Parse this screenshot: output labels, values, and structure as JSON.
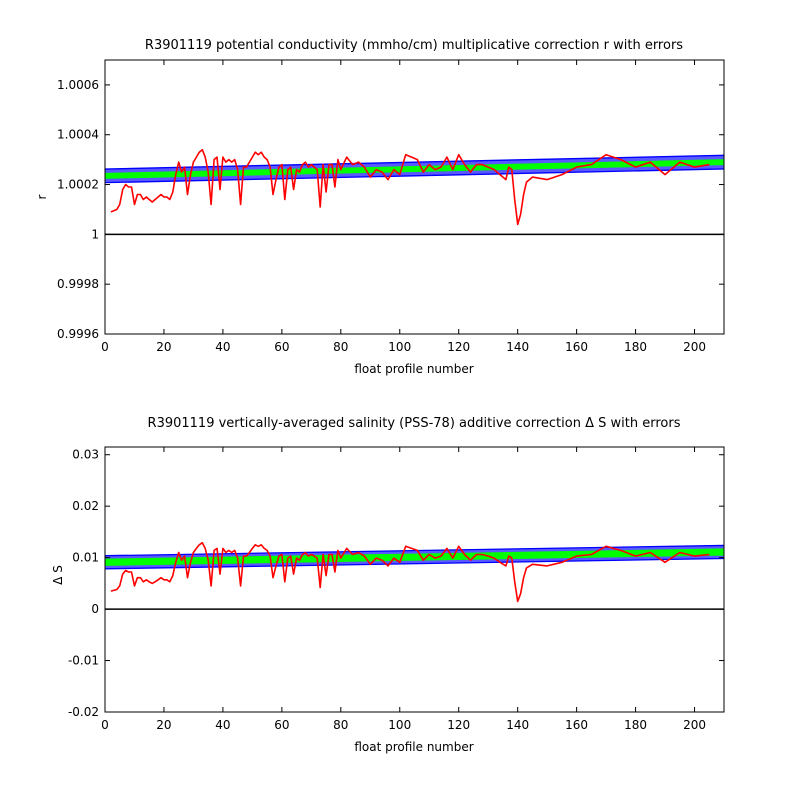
{
  "chart_data": [
    {
      "type": "line",
      "title": "R3901119 potential conductivity (mmho/cm) multiplicative correction r with errors",
      "xlabel": "float profile number",
      "ylabel": "r",
      "xlim": [
        0,
        210
      ],
      "ylim": [
        0.9996,
        1.0007
      ],
      "xticks": [
        0,
        20,
        40,
        60,
        80,
        100,
        120,
        140,
        160,
        180,
        200
      ],
      "yticks": [
        0.9996,
        0.9998,
        1,
        1.0002,
        1.0004,
        1.0006
      ],
      "ytick_labels": [
        "0.9996",
        "0.9998",
        "1",
        "1.0002",
        "1.0004",
        "1.0006"
      ],
      "reference_line": 1,
      "band_center": {
        "x": [
          0,
          210
        ],
        "y": [
          1.000235,
          1.00029
        ]
      },
      "band_green_halfwidth": 1.2e-05,
      "band_blue_halfwidth": 3e-05,
      "series": [
        {
          "color": "#ff0000",
          "x": [
            2,
            4,
            5,
            6,
            7,
            8,
            9,
            10,
            11,
            12,
            13,
            14,
            15,
            16,
            17,
            18,
            19,
            20,
            21,
            22,
            23,
            24,
            25,
            26,
            27,
            28,
            29,
            30,
            31,
            32,
            33,
            34,
            35,
            36,
            37,
            38,
            39,
            40,
            41,
            42,
            43,
            44,
            45,
            46,
            47,
            48,
            49,
            50,
            51,
            52,
            53,
            54,
            55,
            56,
            57,
            58,
            59,
            60,
            61,
            62,
            63,
            64,
            65,
            66,
            67,
            68,
            69,
            70,
            71,
            72,
            73,
            74,
            75,
            76,
            77,
            78,
            79,
            80,
            82,
            84,
            86,
            88,
            90,
            92,
            94,
            96,
            98,
            100,
            102,
            104,
            106,
            108,
            110,
            112,
            114,
            116,
            118,
            120,
            122,
            124,
            126,
            128,
            130,
            132,
            134,
            136,
            137,
            138,
            139,
            140,
            141,
            142,
            143,
            145,
            150,
            155,
            160,
            165,
            170,
            175,
            180,
            185,
            190,
            195,
            200,
            205
          ],
          "y": [
            1.00009,
            1.0001,
            1.00012,
            1.00018,
            1.0002,
            1.00019,
            1.00019,
            1.00012,
            1.00016,
            1.00016,
            1.00014,
            1.00015,
            1.00014,
            1.00013,
            1.00014,
            1.00015,
            1.00016,
            1.00015,
            1.00015,
            1.00014,
            1.00017,
            1.00024,
            1.00029,
            1.00025,
            1.00027,
            1.00016,
            1.00024,
            1.00029,
            1.00031,
            1.00033,
            1.00034,
            1.00031,
            1.00025,
            1.00012,
            1.0003,
            1.00031,
            1.00018,
            1.00031,
            1.00029,
            1.0003,
            1.00029,
            1.0003,
            1.00026,
            1.00012,
            1.00027,
            1.00027,
            1.00029,
            1.00031,
            1.00033,
            1.00032,
            1.00033,
            1.00031,
            1.0003,
            1.00027,
            1.00016,
            1.00022,
            1.00027,
            1.00028,
            1.00014,
            1.00026,
            1.00027,
            1.00018,
            1.00026,
            1.00025,
            1.00028,
            1.00029,
            1.00027,
            1.00028,
            1.00027,
            1.00026,
            1.00011,
            1.00028,
            1.00017,
            1.00028,
            1.00028,
            1.00019,
            1.0003,
            1.00026,
            1.00031,
            1.00028,
            1.00029,
            1.00027,
            1.00023,
            1.00026,
            1.00025,
            1.00022,
            1.00026,
            1.00024,
            1.00032,
            1.00031,
            1.0003,
            1.00025,
            1.00028,
            1.00026,
            1.00027,
            1.00031,
            1.00026,
            1.00032,
            1.00028,
            1.00025,
            1.00028,
            1.00028,
            1.00027,
            1.00026,
            1.00024,
            1.00022,
            1.00027,
            1.00026,
            1.00014,
            1.00004,
            1.00008,
            1.00016,
            1.00021,
            1.00023,
            1.00022,
            1.00024,
            1.00027,
            1.00028,
            1.00032,
            1.0003,
            1.00027,
            1.00029,
            1.00024,
            1.00029,
            1.00027,
            1.00028
          ]
        }
      ]
    },
    {
      "type": "line",
      "title": "R3901119 vertically-averaged salinity (PSS-78) additive correction Δ S with errors",
      "xlabel": "float profile number",
      "ylabel": "Δ S",
      "xlim": [
        0,
        210
      ],
      "ylim": [
        -0.02,
        0.0315
      ],
      "xticks": [
        0,
        20,
        40,
        60,
        80,
        100,
        120,
        140,
        160,
        180,
        200
      ],
      "yticks": [
        -0.02,
        -0.01,
        0,
        0.01,
        0.02,
        0.03
      ],
      "ytick_labels": [
        "-0.02",
        "-0.01",
        "0",
        "0.01",
        "0.02",
        "0.03"
      ],
      "reference_line": 0,
      "band_center": {
        "x": [
          0,
          210
        ],
        "y": [
          0.0091,
          0.0111
        ]
      },
      "band_green_halfwidth": 0.0007,
      "band_blue_halfwidth": 0.0014,
      "series": [
        {
          "color": "#ff0000",
          "x": [
            2,
            4,
            5,
            6,
            7,
            8,
            9,
            10,
            11,
            12,
            13,
            14,
            15,
            16,
            17,
            18,
            19,
            20,
            21,
            22,
            23,
            24,
            25,
            26,
            27,
            28,
            29,
            30,
            31,
            32,
            33,
            34,
            35,
            36,
            37,
            38,
            39,
            40,
            41,
            42,
            43,
            44,
            45,
            46,
            47,
            48,
            49,
            50,
            51,
            52,
            53,
            54,
            55,
            56,
            57,
            58,
            59,
            60,
            61,
            62,
            63,
            64,
            65,
            66,
            67,
            68,
            69,
            70,
            71,
            72,
            73,
            74,
            75,
            76,
            77,
            78,
            79,
            80,
            82,
            84,
            86,
            88,
            90,
            92,
            94,
            96,
            98,
            100,
            102,
            104,
            106,
            108,
            110,
            112,
            114,
            116,
            118,
            120,
            122,
            124,
            126,
            128,
            130,
            132,
            134,
            136,
            137,
            138,
            139,
            140,
            141,
            142,
            143,
            145,
            150,
            155,
            160,
            165,
            170,
            175,
            180,
            185,
            190,
            195,
            200,
            205
          ],
          "y": [
            0.0035,
            0.0038,
            0.0045,
            0.0068,
            0.0075,
            0.0072,
            0.0072,
            0.0045,
            0.0061,
            0.0061,
            0.0053,
            0.0057,
            0.0053,
            0.005,
            0.0053,
            0.0057,
            0.0061,
            0.0057,
            0.0057,
            0.0053,
            0.0065,
            0.0091,
            0.011,
            0.0095,
            0.0103,
            0.0061,
            0.0091,
            0.011,
            0.0118,
            0.0125,
            0.0129,
            0.0118,
            0.0095,
            0.0045,
            0.0114,
            0.0118,
            0.0068,
            0.0118,
            0.011,
            0.0114,
            0.011,
            0.0114,
            0.0099,
            0.0045,
            0.0103,
            0.0103,
            0.011,
            0.0118,
            0.0125,
            0.0122,
            0.0125,
            0.0118,
            0.0114,
            0.0103,
            0.0061,
            0.0084,
            0.0103,
            0.0106,
            0.0053,
            0.0099,
            0.0103,
            0.0068,
            0.0099,
            0.0095,
            0.0106,
            0.011,
            0.0103,
            0.0106,
            0.0103,
            0.0099,
            0.0042,
            0.0106,
            0.0065,
            0.0106,
            0.0106,
            0.0072,
            0.0114,
            0.0099,
            0.0118,
            0.0106,
            0.011,
            0.0103,
            0.0087,
            0.0099,
            0.0095,
            0.0084,
            0.0099,
            0.0091,
            0.0122,
            0.0118,
            0.0114,
            0.0095,
            0.0106,
            0.0099,
            0.0103,
            0.0118,
            0.0099,
            0.0122,
            0.0106,
            0.0095,
            0.0106,
            0.0106,
            0.0103,
            0.0099,
            0.0091,
            0.0084,
            0.0103,
            0.0099,
            0.0053,
            0.0015,
            0.003,
            0.0061,
            0.008,
            0.0087,
            0.0084,
            0.0091,
            0.0103,
            0.0106,
            0.0122,
            0.0114,
            0.0103,
            0.011,
            0.0091,
            0.011,
            0.0103,
            0.0106
          ]
        }
      ]
    }
  ]
}
